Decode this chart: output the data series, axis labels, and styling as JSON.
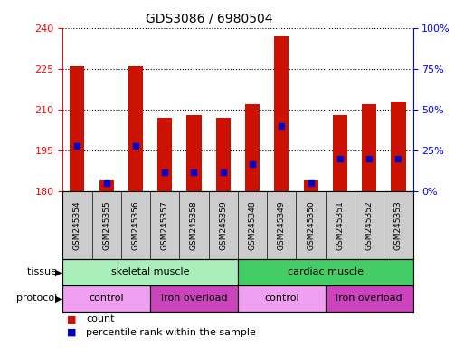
{
  "title": "GDS3086 / 6980504",
  "samples": [
    "GSM245354",
    "GSM245355",
    "GSM245356",
    "GSM245357",
    "GSM245358",
    "GSM245359",
    "GSM245348",
    "GSM245349",
    "GSM245350",
    "GSM245351",
    "GSM245352",
    "GSM245353"
  ],
  "red_values": [
    226,
    184,
    226,
    207,
    208,
    207,
    212,
    237,
    184,
    208,
    212,
    213
  ],
  "blue_percentiles": [
    28,
    5,
    28,
    12,
    12,
    12,
    17,
    40,
    5,
    20,
    20,
    20
  ],
  "ymin": 180,
  "ymax": 240,
  "yticks_left": [
    180,
    195,
    210,
    225,
    240
  ],
  "yticks_right": [
    0,
    25,
    50,
    75,
    100
  ],
  "bar_color": "#cc1100",
  "marker_color": "#0000cc",
  "tissue_groups": [
    {
      "label": "skeletal muscle",
      "start": 0,
      "end": 6,
      "color": "#aaeebb"
    },
    {
      "label": "cardiac muscle",
      "start": 6,
      "end": 12,
      "color": "#44cc66"
    }
  ],
  "protocol_groups": [
    {
      "label": "control",
      "start": 0,
      "end": 3,
      "color": "#f0a0f0"
    },
    {
      "label": "iron overload",
      "start": 3,
      "end": 6,
      "color": "#cc44bb"
    },
    {
      "label": "control",
      "start": 6,
      "end": 9,
      "color": "#f0a0f0"
    },
    {
      "label": "iron overload",
      "start": 9,
      "end": 12,
      "color": "#cc44bb"
    }
  ],
  "legend_count_color": "#cc1100",
  "legend_pct_color": "#0000cc",
  "tissue_label": "tissue",
  "protocol_label": "protocol",
  "legend_count": "count",
  "legend_pct": "percentile rank within the sample",
  "bar_width": 0.5,
  "marker_size": 5
}
